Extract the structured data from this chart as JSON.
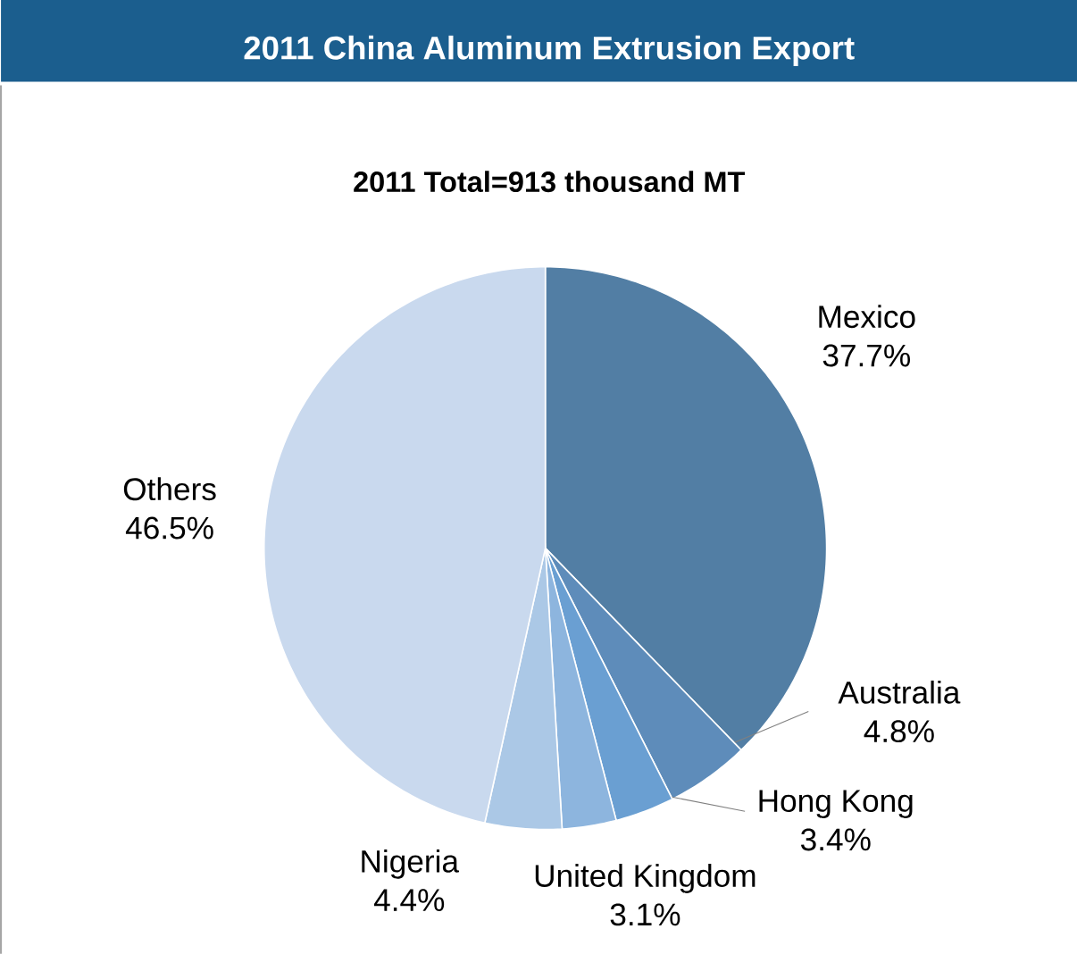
{
  "chart_data": {
    "type": "pie",
    "title": "2011 China Aluminum Extrusion Export",
    "subtitle": "2011 Total=913 thousand MT",
    "categories": [
      "Mexico",
      "Australia",
      "Hong Kong",
      "United Kingdom",
      "Nigeria",
      "Others"
    ],
    "values": [
      37.7,
      4.8,
      3.4,
      3.1,
      4.4,
      46.5
    ],
    "value_labels": [
      "37.7%",
      "4.8%",
      "3.4%",
      "3.1%",
      "4.4%",
      "46.5%"
    ],
    "colors": [
      "#527ea4",
      "#5e8cba",
      "#6a9fd2",
      "#8db5de",
      "#abc8e6",
      "#c9d9ee"
    ]
  }
}
